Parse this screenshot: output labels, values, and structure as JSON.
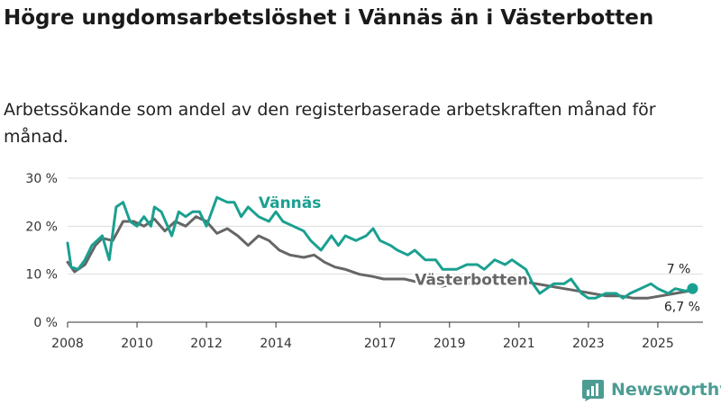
{
  "title": "Högre ungdomsarbetslöshet i Vännäs än i Västerbotten",
  "subtitle": "Arbetssökande som andel av den registerbaserade arbetskraften månad för månad.",
  "brand": "Newsworthy",
  "colors": {
    "vannas": "#1aa090",
    "vasterbotten": "#666666",
    "grid": "#dddddd"
  },
  "chart_data": {
    "type": "line",
    "ylim": [
      0,
      30
    ],
    "yticks": [
      0,
      10,
      20,
      30
    ],
    "ytick_labels": [
      "0 %",
      "10 %",
      "20 %",
      "30 %"
    ],
    "xlim": [
      2008,
      2026.3
    ],
    "xticks": [
      2008,
      2010,
      2012,
      2014,
      2017,
      2019,
      2021,
      2023,
      2025
    ],
    "xtick_labels": [
      "2008",
      "2010",
      "2012",
      "2014",
      "2017",
      "2019",
      "2021",
      "2023",
      "2025"
    ],
    "series": [
      {
        "name": "Vännäs",
        "label": "Vännäs",
        "end_label": "7 %",
        "x": [
          2008.0,
          2008.1,
          2008.3,
          2008.5,
          2008.7,
          2009.0,
          2009.2,
          2009.4,
          2009.6,
          2009.8,
          2010.0,
          2010.2,
          2010.4,
          2010.5,
          2010.7,
          2011.0,
          2011.2,
          2011.4,
          2011.6,
          2011.8,
          2012.0,
          2012.3,
          2012.6,
          2012.8,
          2013.0,
          2013.2,
          2013.5,
          2013.8,
          2014.0,
          2014.2,
          2014.5,
          2014.8,
          2015.0,
          2015.3,
          2015.6,
          2015.8,
          2016.0,
          2016.3,
          2016.6,
          2016.8,
          2017.0,
          2017.3,
          2017.5,
          2017.8,
          2018.0,
          2018.3,
          2018.6,
          2018.8,
          2019.0,
          2019.2,
          2019.5,
          2019.8,
          2020.0,
          2020.3,
          2020.6,
          2020.8,
          2021.0,
          2021.2,
          2021.4,
          2021.6,
          2021.8,
          2022.0,
          2022.3,
          2022.5,
          2022.8,
          2023.0,
          2023.2,
          2023.5,
          2023.8,
          2024.0,
          2024.2,
          2024.5,
          2024.8,
          2025.0,
          2025.3,
          2025.5,
          2025.8,
          2026.0
        ],
        "values": [
          16.5,
          11.5,
          11,
          13,
          16,
          18,
          13,
          24,
          25,
          21,
          20,
          22,
          20,
          24,
          23,
          18,
          23,
          22,
          23,
          23,
          20,
          26,
          25,
          25,
          22,
          24,
          22,
          21,
          23,
          21,
          20,
          19,
          17,
          15,
          18,
          16,
          18,
          17,
          18,
          19.5,
          17,
          16,
          15,
          14,
          15,
          13,
          13,
          11,
          11,
          11,
          12,
          12,
          11,
          13,
          12,
          13,
          12,
          11,
          8,
          6,
          7,
          8,
          8,
          9,
          6,
          5,
          5,
          6,
          6,
          5,
          6,
          7,
          8,
          7,
          6,
          7,
          6.5,
          7
        ]
      },
      {
        "name": "Västerbotten",
        "label": "Västerbotten",
        "end_label": "6,7 %",
        "x": [
          2008.0,
          2008.2,
          2008.5,
          2008.8,
          2009.0,
          2009.3,
          2009.6,
          2009.9,
          2010.2,
          2010.5,
          2010.8,
          2011.1,
          2011.4,
          2011.7,
          2012.0,
          2012.3,
          2012.6,
          2012.9,
          2013.2,
          2013.5,
          2013.8,
          2014.1,
          2014.4,
          2014.8,
          2015.1,
          2015.4,
          2015.7,
          2016.0,
          2016.4,
          2016.8,
          2017.1,
          2017.4,
          2017.7,
          2018.0,
          2018.4,
          2018.8,
          2019.1,
          2019.5,
          2019.9,
          2020.3,
          2020.7,
          2021.1,
          2021.5,
          2021.9,
          2022.3,
          2022.7,
          2023.1,
          2023.5,
          2023.9,
          2024.3,
          2024.7,
          2025.1,
          2025.5,
          2025.9,
          2026.0
        ],
        "values": [
          12.5,
          10.5,
          12,
          16,
          17.5,
          17,
          21,
          21,
          20,
          21.5,
          19,
          21,
          20,
          22,
          21,
          18.5,
          19.5,
          18,
          16,
          18,
          17,
          15,
          14,
          13.5,
          14,
          12.5,
          11.5,
          11,
          10,
          9.5,
          9,
          9,
          9,
          8.5,
          8,
          7.5,
          8,
          8,
          8.5,
          9.5,
          9,
          8.5,
          8,
          7.5,
          7,
          6.5,
          6,
          5.5,
          5.5,
          5,
          5,
          5.5,
          6,
          6.5,
          6.7
        ]
      }
    ]
  }
}
